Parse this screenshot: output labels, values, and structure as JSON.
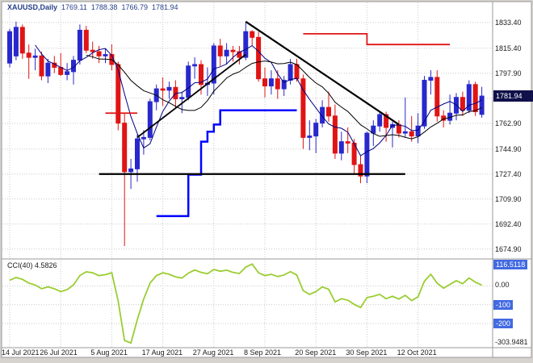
{
  "header": {
    "symbol": "XAUUSD,Daily",
    "open": "1769.11",
    "high": "1788.38",
    "low": "1766.79",
    "close": "1781.94"
  },
  "price_axis": {
    "labels": [
      {
        "text": "1833.40",
        "value": 1833.4
      },
      {
        "text": "1815.40",
        "value": 1815.4
      },
      {
        "text": "1797.90",
        "value": 1797.9
      },
      {
        "text": "1762.90",
        "value": 1762.9
      },
      {
        "text": "1744.90",
        "value": 1744.9
      },
      {
        "text": "1727.40",
        "value": 1727.4
      },
      {
        "text": "1709.90",
        "value": 1709.9
      },
      {
        "text": "1692.40",
        "value": 1692.4
      },
      {
        "text": "1674.90",
        "value": 1674.9
      }
    ],
    "current_price": {
      "text": "1781.94",
      "value": 1781.94
    }
  },
  "time_axis": {
    "labels": [
      {
        "text": "14 Jul 2021",
        "index": 0
      },
      {
        "text": "26 Jul 2021",
        "index": 8
      },
      {
        "text": "5 Aug 2021",
        "index": 16
      },
      {
        "text": "17 Aug 2021",
        "index": 24
      },
      {
        "text": "27 Aug 2021",
        "index": 32
      },
      {
        "text": "8 Sep 2021",
        "index": 40
      },
      {
        "text": "20 Sep 2021",
        "index": 48
      },
      {
        "text": "30 Sep 2021",
        "index": 56
      },
      {
        "text": "12 Oct 2021",
        "index": 64
      }
    ]
  },
  "indicator_panel": {
    "label": "CCI(40) 4.5826",
    "axis_labels": [
      {
        "text": "116.5118",
        "value": 116.5118,
        "highlight": true
      },
      {
        "text": "0.00",
        "value": 0,
        "highlight": false
      },
      {
        "text": "-100",
        "value": -100,
        "highlight": true
      },
      {
        "text": "-200",
        "value": -200,
        "highlight": true
      },
      {
        "text": "-303.9481",
        "value": -303.9481,
        "highlight": false
      }
    ]
  },
  "colors": {
    "bull": "#2828cc",
    "bear": "#e01414",
    "grid": "#c9c9c9",
    "frame": "#9a9a9a",
    "ma_fast": "#000080",
    "ma_slow": "#000000",
    "step_line": "#0000ff",
    "object_line": "#000000",
    "resistance_line": "#e01414",
    "cci_line": "#9acd32",
    "price_tag_bg": "#10104a",
    "level_tag_bg": "#4169e1",
    "header_text": "#27408b"
  },
  "chart_data": {
    "type": "candlestick",
    "symbol": "XAUUSD",
    "timeframe": "Daily",
    "price_range": [
      1668,
      1848
    ],
    "candles": [
      [
        1805,
        1829,
        1802,
        1827
      ],
      [
        1810,
        1834,
        1807,
        1830
      ],
      [
        1830,
        1832,
        1808,
        1812
      ],
      [
        1812,
        1818,
        1794,
        1809
      ],
      [
        1809,
        1815,
        1800,
        1810
      ],
      [
        1810,
        1813,
        1793,
        1796
      ],
      [
        1796,
        1808,
        1791,
        1805
      ],
      [
        1805,
        1810,
        1798,
        1802
      ],
      [
        1802,
        1812,
        1796,
        1797
      ],
      [
        1797,
        1805,
        1793,
        1799
      ],
      [
        1799,
        1810,
        1790,
        1807
      ],
      [
        1807,
        1832,
        1804,
        1828
      ],
      [
        1828,
        1831,
        1812,
        1814
      ],
      [
        1814,
        1820,
        1808,
        1813
      ],
      [
        1813,
        1817,
        1805,
        1810
      ],
      [
        1810,
        1815,
        1805,
        1811
      ],
      [
        1811,
        1818,
        1800,
        1804
      ],
      [
        1804,
        1806,
        1758,
        1763
      ],
      [
        1763,
        1770,
        1677,
        1729
      ],
      [
        1729,
        1738,
        1717,
        1731
      ],
      [
        1731,
        1755,
        1722,
        1752
      ],
      [
        1752,
        1758,
        1741,
        1753
      ],
      [
        1753,
        1780,
        1751,
        1778
      ],
      [
        1778,
        1790,
        1772,
        1787
      ],
      [
        1787,
        1795,
        1775,
        1786
      ],
      [
        1786,
        1792,
        1780,
        1788
      ],
      [
        1788,
        1793,
        1774,
        1780
      ],
      [
        1780,
        1785,
        1770,
        1781
      ],
      [
        1781,
        1806,
        1779,
        1803
      ],
      [
        1803,
        1809,
        1794,
        1804
      ],
      [
        1804,
        1807,
        1783,
        1790
      ],
      [
        1790,
        1802,
        1782,
        1791
      ],
      [
        1791,
        1819,
        1783,
        1817
      ],
      [
        1817,
        1822,
        1803,
        1810
      ],
      [
        1810,
        1819,
        1804,
        1814
      ],
      [
        1814,
        1817,
        1806,
        1813
      ],
      [
        1813,
        1817,
        1804,
        1809
      ],
      [
        1809,
        1834,
        1807,
        1827
      ],
      [
        1827,
        1828,
        1817,
        1823
      ],
      [
        1823,
        1827,
        1792,
        1794
      ],
      [
        1794,
        1802,
        1781,
        1789
      ],
      [
        1789,
        1800,
        1783,
        1794
      ],
      [
        1794,
        1800,
        1780,
        1787
      ],
      [
        1787,
        1796,
        1782,
        1793
      ],
      [
        1793,
        1808,
        1790,
        1804
      ],
      [
        1804,
        1808,
        1792,
        1794
      ],
      [
        1794,
        1797,
        1745,
        1753
      ],
      [
        1753,
        1765,
        1744,
        1754
      ],
      [
        1754,
        1766,
        1742,
        1763
      ],
      [
        1763,
        1779,
        1760,
        1774
      ],
      [
        1774,
        1785,
        1764,
        1768
      ],
      [
        1768,
        1776,
        1738,
        1742
      ],
      [
        1742,
        1757,
        1737,
        1750
      ],
      [
        1750,
        1760,
        1742,
        1749
      ],
      [
        1749,
        1752,
        1727,
        1734
      ],
      [
        1734,
        1740,
        1721,
        1726
      ],
      [
        1726,
        1757,
        1721,
        1756
      ],
      [
        1756,
        1765,
        1747,
        1761
      ],
      [
        1761,
        1771,
        1757,
        1769
      ],
      [
        1769,
        1771,
        1750,
        1760
      ],
      [
        1760,
        1764,
        1746,
        1762
      ],
      [
        1762,
        1765,
        1753,
        1756
      ],
      [
        1756,
        1781,
        1753,
        1757
      ],
      [
        1757,
        1768,
        1750,
        1754
      ],
      [
        1754,
        1770,
        1749,
        1761
      ],
      [
        1761,
        1796,
        1759,
        1793
      ],
      [
        1793,
        1800,
        1783,
        1795
      ],
      [
        1795,
        1800,
        1764,
        1768
      ],
      [
        1768,
        1772,
        1760,
        1765
      ],
      [
        1765,
        1783,
        1762,
        1770
      ],
      [
        1770,
        1784,
        1765,
        1781
      ],
      [
        1781,
        1785,
        1768,
        1772
      ],
      [
        1772,
        1793,
        1770,
        1790
      ],
      [
        1790,
        1792,
        1768,
        1771
      ],
      [
        1769.11,
        1788.38,
        1766.79,
        1781.94
      ]
    ],
    "overlays": {
      "blue_step_line": [
        [
          23,
          1698
        ],
        [
          28,
          1698
        ],
        [
          28,
          1727
        ],
        [
          30,
          1727
        ],
        [
          30,
          1750
        ],
        [
          31,
          1750
        ],
        [
          31,
          1757
        ],
        [
          32,
          1757
        ],
        [
          32,
          1762
        ],
        [
          33,
          1762
        ],
        [
          33,
          1772
        ],
        [
          45,
          1772
        ]
      ],
      "ascending_trendline": [
        [
          20,
          1753
        ],
        [
          37,
          1811
        ]
      ],
      "descending_trendline": [
        [
          37,
          1834
        ],
        [
          61,
          1762
        ]
      ],
      "support_line": [
        [
          14,
          1727.4
        ],
        [
          62,
          1727.4
        ]
      ],
      "resistance_steps": [
        [
          46,
          1825.5
        ],
        [
          56,
          1825.5
        ],
        [
          56,
          1818
        ],
        [
          69,
          1818
        ]
      ],
      "resistance_segment": [
        [
          15,
          1770
        ],
        [
          20,
          1770
        ]
      ]
    },
    "cci": {
      "period": 40,
      "range": [
        -320,
        135
      ],
      "levels": [
        0,
        -100,
        -200
      ],
      "values": [
        30,
        45,
        35,
        15,
        5,
        -15,
        -5,
        -15,
        -30,
        -20,
        5,
        55,
        75,
        70,
        55,
        60,
        70,
        -80,
        -290,
        -303.9481,
        -180,
        -70,
        15,
        55,
        70,
        62,
        48,
        42,
        68,
        85,
        72,
        65,
        88,
        78,
        84,
        72,
        66,
        100,
        116.5118,
        70,
        55,
        62,
        50,
        58,
        76,
        58,
        -25,
        -45,
        -30,
        -5,
        -18,
        -85,
        -68,
        -76,
        -98,
        -115,
        -62,
        -55,
        -45,
        -68,
        -55,
        -70,
        -50,
        -78,
        -58,
        25,
        62,
        15,
        -12,
        8,
        28,
        12,
        42,
        20,
        4.5826
      ]
    }
  }
}
